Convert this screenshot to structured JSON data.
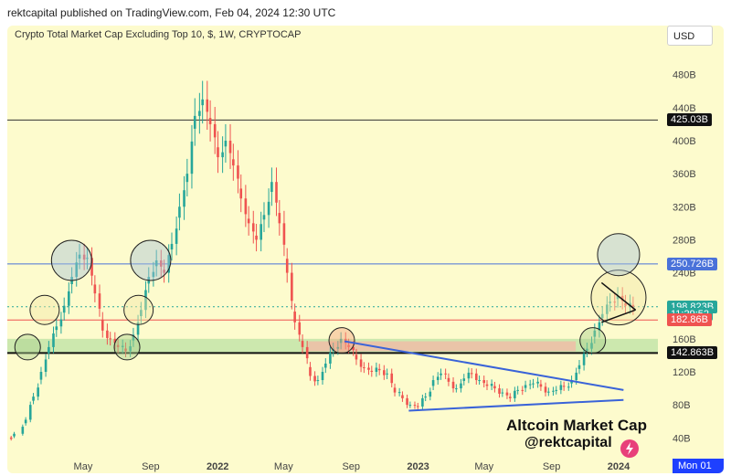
{
  "header": {
    "published": "rektcapital published on TradingView.com, Feb 04, 2024 12:30 UTC"
  },
  "chart_data": {
    "type": "candlestick",
    "title": "Crypto Total Market Cap Excluding Top 10, $, 1W, CRYPTOCAP",
    "currency_button": "USD",
    "y_ticks": [
      "480B",
      "440B",
      "400B",
      "360B",
      "320B",
      "280B",
      "240B",
      "200B",
      "160B",
      "120B",
      "80B",
      "40B"
    ],
    "y_tick_values": [
      480,
      440,
      400,
      360,
      320,
      280,
      240,
      200,
      160,
      120,
      80,
      40
    ],
    "x_ticks": [
      "May",
      "Sep",
      "2022",
      "May",
      "Sep",
      "2023",
      "May",
      "Sep",
      "2024"
    ],
    "x_tick_dates": [
      "2021-05-01",
      "2021-09-01",
      "2022-01-01",
      "2022-05-01",
      "2022-09-01",
      "2023-01-01",
      "2023-05-01",
      "2023-09-01",
      "2024-01-01"
    ],
    "price_tags": [
      {
        "label": "425.03B",
        "value": 425.03,
        "color": "#111111"
      },
      {
        "label": "250.726B",
        "value": 250.726,
        "color": "#4a72d9"
      },
      {
        "label": "198.823B",
        "value": 198.823,
        "color": "#26a69a"
      },
      {
        "label": "11:29:52",
        "value": 190,
        "color": "#26a69a"
      },
      {
        "label": "182.86B",
        "value": 182.86,
        "color": "#ef5350"
      },
      {
        "label": "142.863B",
        "value": 142.863,
        "color": "#111111"
      }
    ],
    "horizontal_levels": [
      {
        "value": 425.03,
        "color": "#333333"
      },
      {
        "value": 250.726,
        "color": "#4a72d9"
      },
      {
        "value": 198.823,
        "color": "#26a69a"
      },
      {
        "value": 182.86,
        "color": "#ef5350"
      },
      {
        "value": 142.863,
        "color": "#111111"
      }
    ],
    "closes": [
      [
        45,
        "2020-12-21"
      ],
      [
        62,
        "2021-01-11"
      ],
      [
        90,
        "2021-01-25"
      ],
      [
        120,
        "2021-02-08"
      ],
      [
        150,
        "2021-02-22"
      ],
      [
        175,
        "2021-03-08"
      ],
      [
        200,
        "2021-03-22"
      ],
      [
        235,
        "2021-04-05"
      ],
      [
        262,
        "2021-04-19"
      ],
      [
        258,
        "2021-05-03"
      ],
      [
        215,
        "2021-05-17"
      ],
      [
        170,
        "2021-05-31"
      ],
      [
        160,
        "2021-06-14"
      ],
      [
        150,
        "2021-06-28"
      ],
      [
        145,
        "2021-07-12"
      ],
      [
        165,
        "2021-07-26"
      ],
      [
        195,
        "2021-08-09"
      ],
      [
        235,
        "2021-08-23"
      ],
      [
        255,
        "2021-09-06"
      ],
      [
        240,
        "2021-09-20"
      ],
      [
        275,
        "2021-10-04"
      ],
      [
        320,
        "2021-10-18"
      ],
      [
        360,
        "2021-11-01"
      ],
      [
        430,
        "2021-11-15"
      ],
      [
        450,
        "2021-11-29"
      ],
      [
        420,
        "2021-12-13"
      ],
      [
        380,
        "2021-12-27"
      ],
      [
        400,
        "2022-01-10"
      ],
      [
        370,
        "2022-01-24"
      ],
      [
        330,
        "2022-02-07"
      ],
      [
        300,
        "2022-02-21"
      ],
      [
        280,
        "2022-03-07"
      ],
      [
        310,
        "2022-03-21"
      ],
      [
        350,
        "2022-04-04"
      ],
      [
        300,
        "2022-04-18"
      ],
      [
        240,
        "2022-05-02"
      ],
      [
        180,
        "2022-05-16"
      ],
      [
        150,
        "2022-05-30"
      ],
      [
        115,
        "2022-06-13"
      ],
      [
        110,
        "2022-06-27"
      ],
      [
        130,
        "2022-07-11"
      ],
      [
        148,
        "2022-07-25"
      ],
      [
        160,
        "2022-08-08"
      ],
      [
        150,
        "2022-08-22"
      ],
      [
        135,
        "2022-09-05"
      ],
      [
        125,
        "2022-09-19"
      ],
      [
        120,
        "2022-10-03"
      ],
      [
        122,
        "2022-10-17"
      ],
      [
        118,
        "2022-10-31"
      ],
      [
        95,
        "2022-11-14"
      ],
      [
        88,
        "2022-11-28"
      ],
      [
        80,
        "2022-12-12"
      ],
      [
        78,
        "2022-12-26"
      ],
      [
        90,
        "2023-01-09"
      ],
      [
        110,
        "2023-01-23"
      ],
      [
        118,
        "2023-02-06"
      ],
      [
        108,
        "2023-02-20"
      ],
      [
        100,
        "2023-03-06"
      ],
      [
        112,
        "2023-03-20"
      ],
      [
        118,
        "2023-04-03"
      ],
      [
        110,
        "2023-04-17"
      ],
      [
        103,
        "2023-05-01"
      ],
      [
        100,
        "2023-05-15"
      ],
      [
        95,
        "2023-05-29"
      ],
      [
        88,
        "2023-06-12"
      ],
      [
        98,
        "2023-06-26"
      ],
      [
        104,
        "2023-07-10"
      ],
      [
        106,
        "2023-07-24"
      ],
      [
        102,
        "2023-08-07"
      ],
      [
        96,
        "2023-08-21"
      ],
      [
        98,
        "2023-09-04"
      ],
      [
        102,
        "2023-09-18"
      ],
      [
        110,
        "2023-10-02"
      ],
      [
        128,
        "2023-10-16"
      ],
      [
        148,
        "2023-10-30"
      ],
      [
        170,
        "2023-11-13"
      ],
      [
        190,
        "2023-11-27"
      ],
      [
        205,
        "2023-12-11"
      ],
      [
        212,
        "2023-12-25"
      ],
      [
        200,
        "2024-01-08"
      ],
      [
        198.8,
        "2024-01-22"
      ]
    ],
    "watermark": [
      "Altcoin Market Cap",
      "@rektcapital"
    ],
    "time_box": "Mon 01"
  }
}
